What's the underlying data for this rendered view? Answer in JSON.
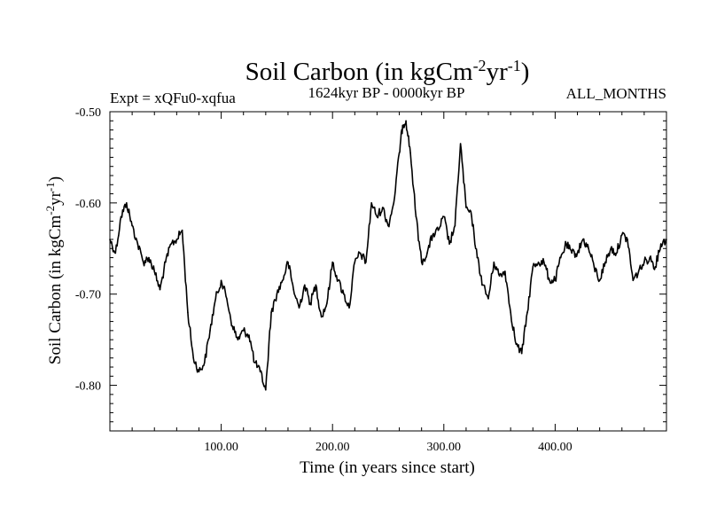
{
  "chart_data": {
    "type": "line",
    "title": "Soil Carbon (in kgCm",
    "title_sup1": "-2",
    "title_mid": "yr",
    "title_sup2": "-1",
    "title_end": ")",
    "subtitle_left": "Expt = xQFu0-xqfua",
    "subtitle_center": "1624kyr BP - 0000kyr BP",
    "subtitle_right": "ALL_MONTHS",
    "xlabel": "Time (in years since start)",
    "ylabel": "Soil Carbon (in kgCm",
    "ylabel_sup1": "-2",
    "ylabel_mid": "yr",
    "ylabel_sup2": "-1",
    "ylabel_end": ")",
    "xlim": [
      0,
      500
    ],
    "ylim": [
      -0.85,
      -0.5
    ],
    "x_ticks": [
      100,
      200,
      300,
      400
    ],
    "x_tick_labels": [
      "100.00",
      "200.00",
      "300.00",
      "400.00"
    ],
    "y_ticks": [
      -0.5,
      -0.6,
      -0.7,
      -0.8
    ],
    "y_tick_labels": [
      "-0.50",
      "-0.60",
      "-0.70",
      "-0.80"
    ],
    "series": [
      {
        "name": "Soil Carbon",
        "color": "#000000",
        "x": [
          0,
          5,
          10,
          15,
          20,
          25,
          30,
          35,
          40,
          45,
          50,
          55,
          60,
          65,
          70,
          75,
          80,
          85,
          90,
          95,
          100,
          105,
          110,
          115,
          120,
          125,
          130,
          135,
          140,
          145,
          150,
          155,
          160,
          165,
          170,
          175,
          180,
          185,
          190,
          195,
          200,
          205,
          210,
          215,
          220,
          225,
          230,
          235,
          240,
          245,
          250,
          255,
          260,
          263,
          266,
          270,
          275,
          280,
          285,
          290,
          295,
          300,
          305,
          310,
          315,
          320,
          325,
          330,
          335,
          340,
          345,
          350,
          355,
          360,
          365,
          370,
          375,
          380,
          385,
          390,
          395,
          400,
          405,
          410,
          415,
          420,
          425,
          430,
          435,
          440,
          445,
          450,
          455,
          460,
          465,
          470,
          475,
          480,
          485,
          490,
          495,
          500
        ],
        "y": [
          -0.64,
          -0.655,
          -0.615,
          -0.6,
          -0.625,
          -0.645,
          -0.665,
          -0.66,
          -0.675,
          -0.695,
          -0.665,
          -0.645,
          -0.64,
          -0.63,
          -0.72,
          -0.77,
          -0.785,
          -0.775,
          -0.74,
          -0.705,
          -0.685,
          -0.705,
          -0.735,
          -0.75,
          -0.74,
          -0.745,
          -0.775,
          -0.785,
          -0.805,
          -0.72,
          -0.7,
          -0.685,
          -0.665,
          -0.695,
          -0.715,
          -0.69,
          -0.71,
          -0.69,
          -0.725,
          -0.71,
          -0.665,
          -0.685,
          -0.7,
          -0.715,
          -0.665,
          -0.655,
          -0.665,
          -0.6,
          -0.615,
          -0.605,
          -0.625,
          -0.6,
          -0.545,
          -0.515,
          -0.51,
          -0.545,
          -0.615,
          -0.665,
          -0.655,
          -0.635,
          -0.63,
          -0.615,
          -0.645,
          -0.625,
          -0.535,
          -0.605,
          -0.615,
          -0.66,
          -0.69,
          -0.705,
          -0.665,
          -0.68,
          -0.675,
          -0.72,
          -0.755,
          -0.765,
          -0.72,
          -0.67,
          -0.665,
          -0.665,
          -0.685,
          -0.685,
          -0.66,
          -0.645,
          -0.655,
          -0.655,
          -0.64,
          -0.65,
          -0.67,
          -0.685,
          -0.665,
          -0.65,
          -0.655,
          -0.635,
          -0.64,
          -0.685,
          -0.675,
          -0.665,
          -0.66,
          -0.67,
          -0.645,
          -0.64
        ]
      }
    ]
  }
}
